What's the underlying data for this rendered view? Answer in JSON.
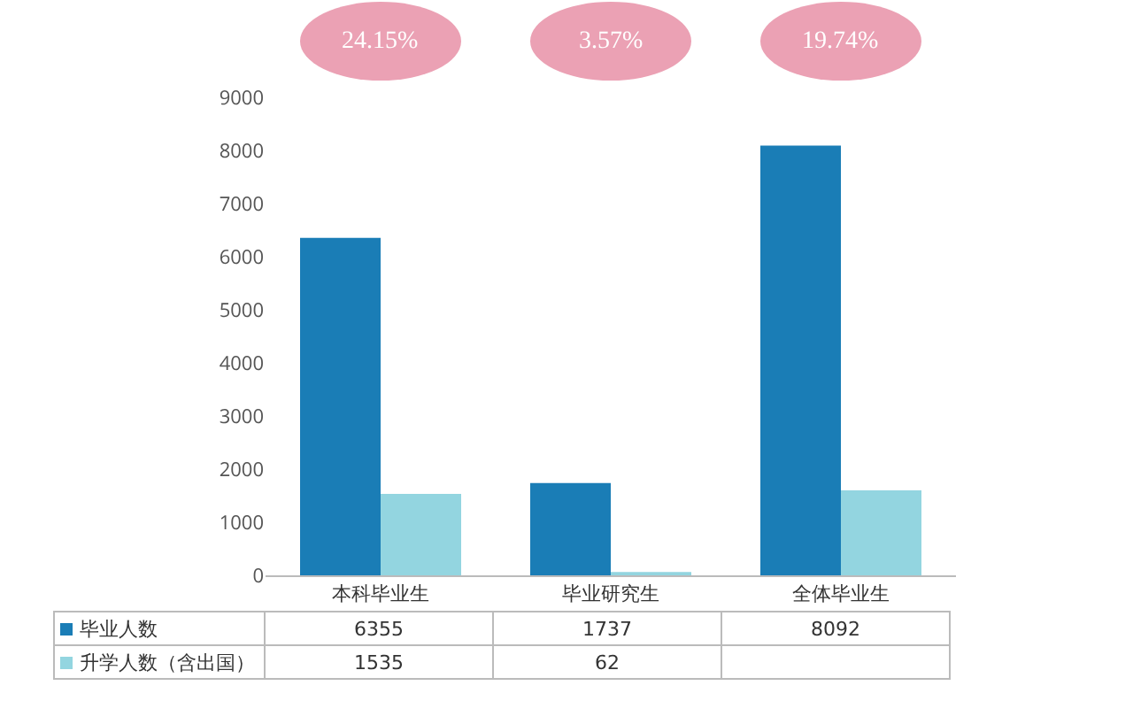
{
  "chart_data": {
    "type": "bar",
    "categories": [
      "本科毕业生",
      "毕业研究生",
      "全体毕业生"
    ],
    "series": [
      {
        "name": "毕业人数",
        "color": "#1a7db6",
        "values": [
          6355,
          1737,
          8092
        ],
        "value_labels": [
          "6355",
          "1737",
          "8092"
        ]
      },
      {
        "name": "升学人数（含出国）",
        "color": "#93d5e0",
        "values": [
          1535,
          62,
          1600
        ],
        "value_labels": [
          "1535",
          "62",
          null
        ]
      }
    ],
    "ylim": [
      0,
      9000
    ],
    "yticks": [
      0,
      1000,
      2000,
      3000,
      4000,
      5000,
      6000,
      7000,
      8000,
      9000
    ],
    "grid": false,
    "legend": "bottom left",
    "annotations": [
      "24.15%",
      "3.57%",
      "19.74%"
    ]
  }
}
